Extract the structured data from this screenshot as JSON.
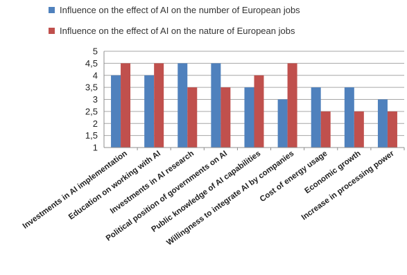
{
  "chart_data": {
    "type": "bar",
    "title": "",
    "xlabel": "",
    "ylabel": "",
    "ylim": [
      1,
      5
    ],
    "yticks": [
      "1",
      "1,5",
      "2",
      "2,5",
      "3",
      "3,5",
      "4",
      "4,5",
      "5"
    ],
    "grid": true,
    "legend_position": "top-left",
    "categories": [
      "Investments in AI implementation",
      "Education on working with AI",
      "Investments in AI research",
      "Political position of governments on AI",
      "Public knowledge of AI capabilities",
      "Willingness to integrate AI by companies",
      "Cost of energy usage",
      "Economic growth",
      "Increase in processing power"
    ],
    "series": [
      {
        "name": "Influence on the effect of AI on the number of European jobs",
        "color": "#4f81bd",
        "values": [
          4,
          4,
          4.5,
          4.5,
          3.5,
          3,
          3.5,
          3.5,
          3
        ]
      },
      {
        "name": "Influence on the effect of AI on the nature of European jobs",
        "color": "#c0504d",
        "values": [
          4.5,
          4.5,
          3.5,
          3.5,
          4,
          4.5,
          2.5,
          2.5,
          2.5
        ]
      }
    ]
  }
}
